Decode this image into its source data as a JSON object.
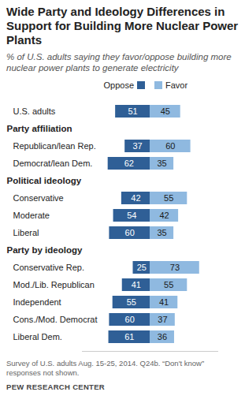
{
  "chart_data": {
    "type": "bar",
    "orientation": "horizontal",
    "stacked": true,
    "data_labels": true,
    "tick_labels": "y",
    "legend": "top",
    "title": "Wide Party and Ideology Differences in Support for Building More Nuclear Power Plants",
    "subtitle": "% of U.S. adults saying they favor/oppose building more nuclear power plants to generate electricity",
    "note": "Survey of U.S. adults Aug. 15-25, 2014. Q24b. “Don't know” responses not shown.",
    "source": "PEW RESEARCH CENTER",
    "categories": [
      "U.S. adults",
      "Party affiliation",
      "Republican/lean Rep.",
      "Democrat/lean Dem.",
      "Political ideology",
      "Conservative",
      "Moderate",
      "Liberal",
      "Party by ideology",
      "Conservative Rep.",
      "Mod./Lib. Republican",
      "Independent",
      "Cons./Mod. Democrat",
      "Liberal Dem."
    ],
    "series": [
      {
        "name": "Oppose",
        "color": "#2f5f96",
        "values": [
          51,
          null,
          37,
          62,
          null,
          42,
          54,
          60,
          null,
          25,
          41,
          55,
          60,
          61
        ]
      },
      {
        "name": "Favor",
        "color": "#8fb9e0",
        "values": [
          45,
          null,
          60,
          35,
          null,
          55,
          42,
          35,
          null,
          73,
          55,
          41,
          37,
          36
        ]
      }
    ],
    "xlim": [
      0,
      100
    ]
  }
}
